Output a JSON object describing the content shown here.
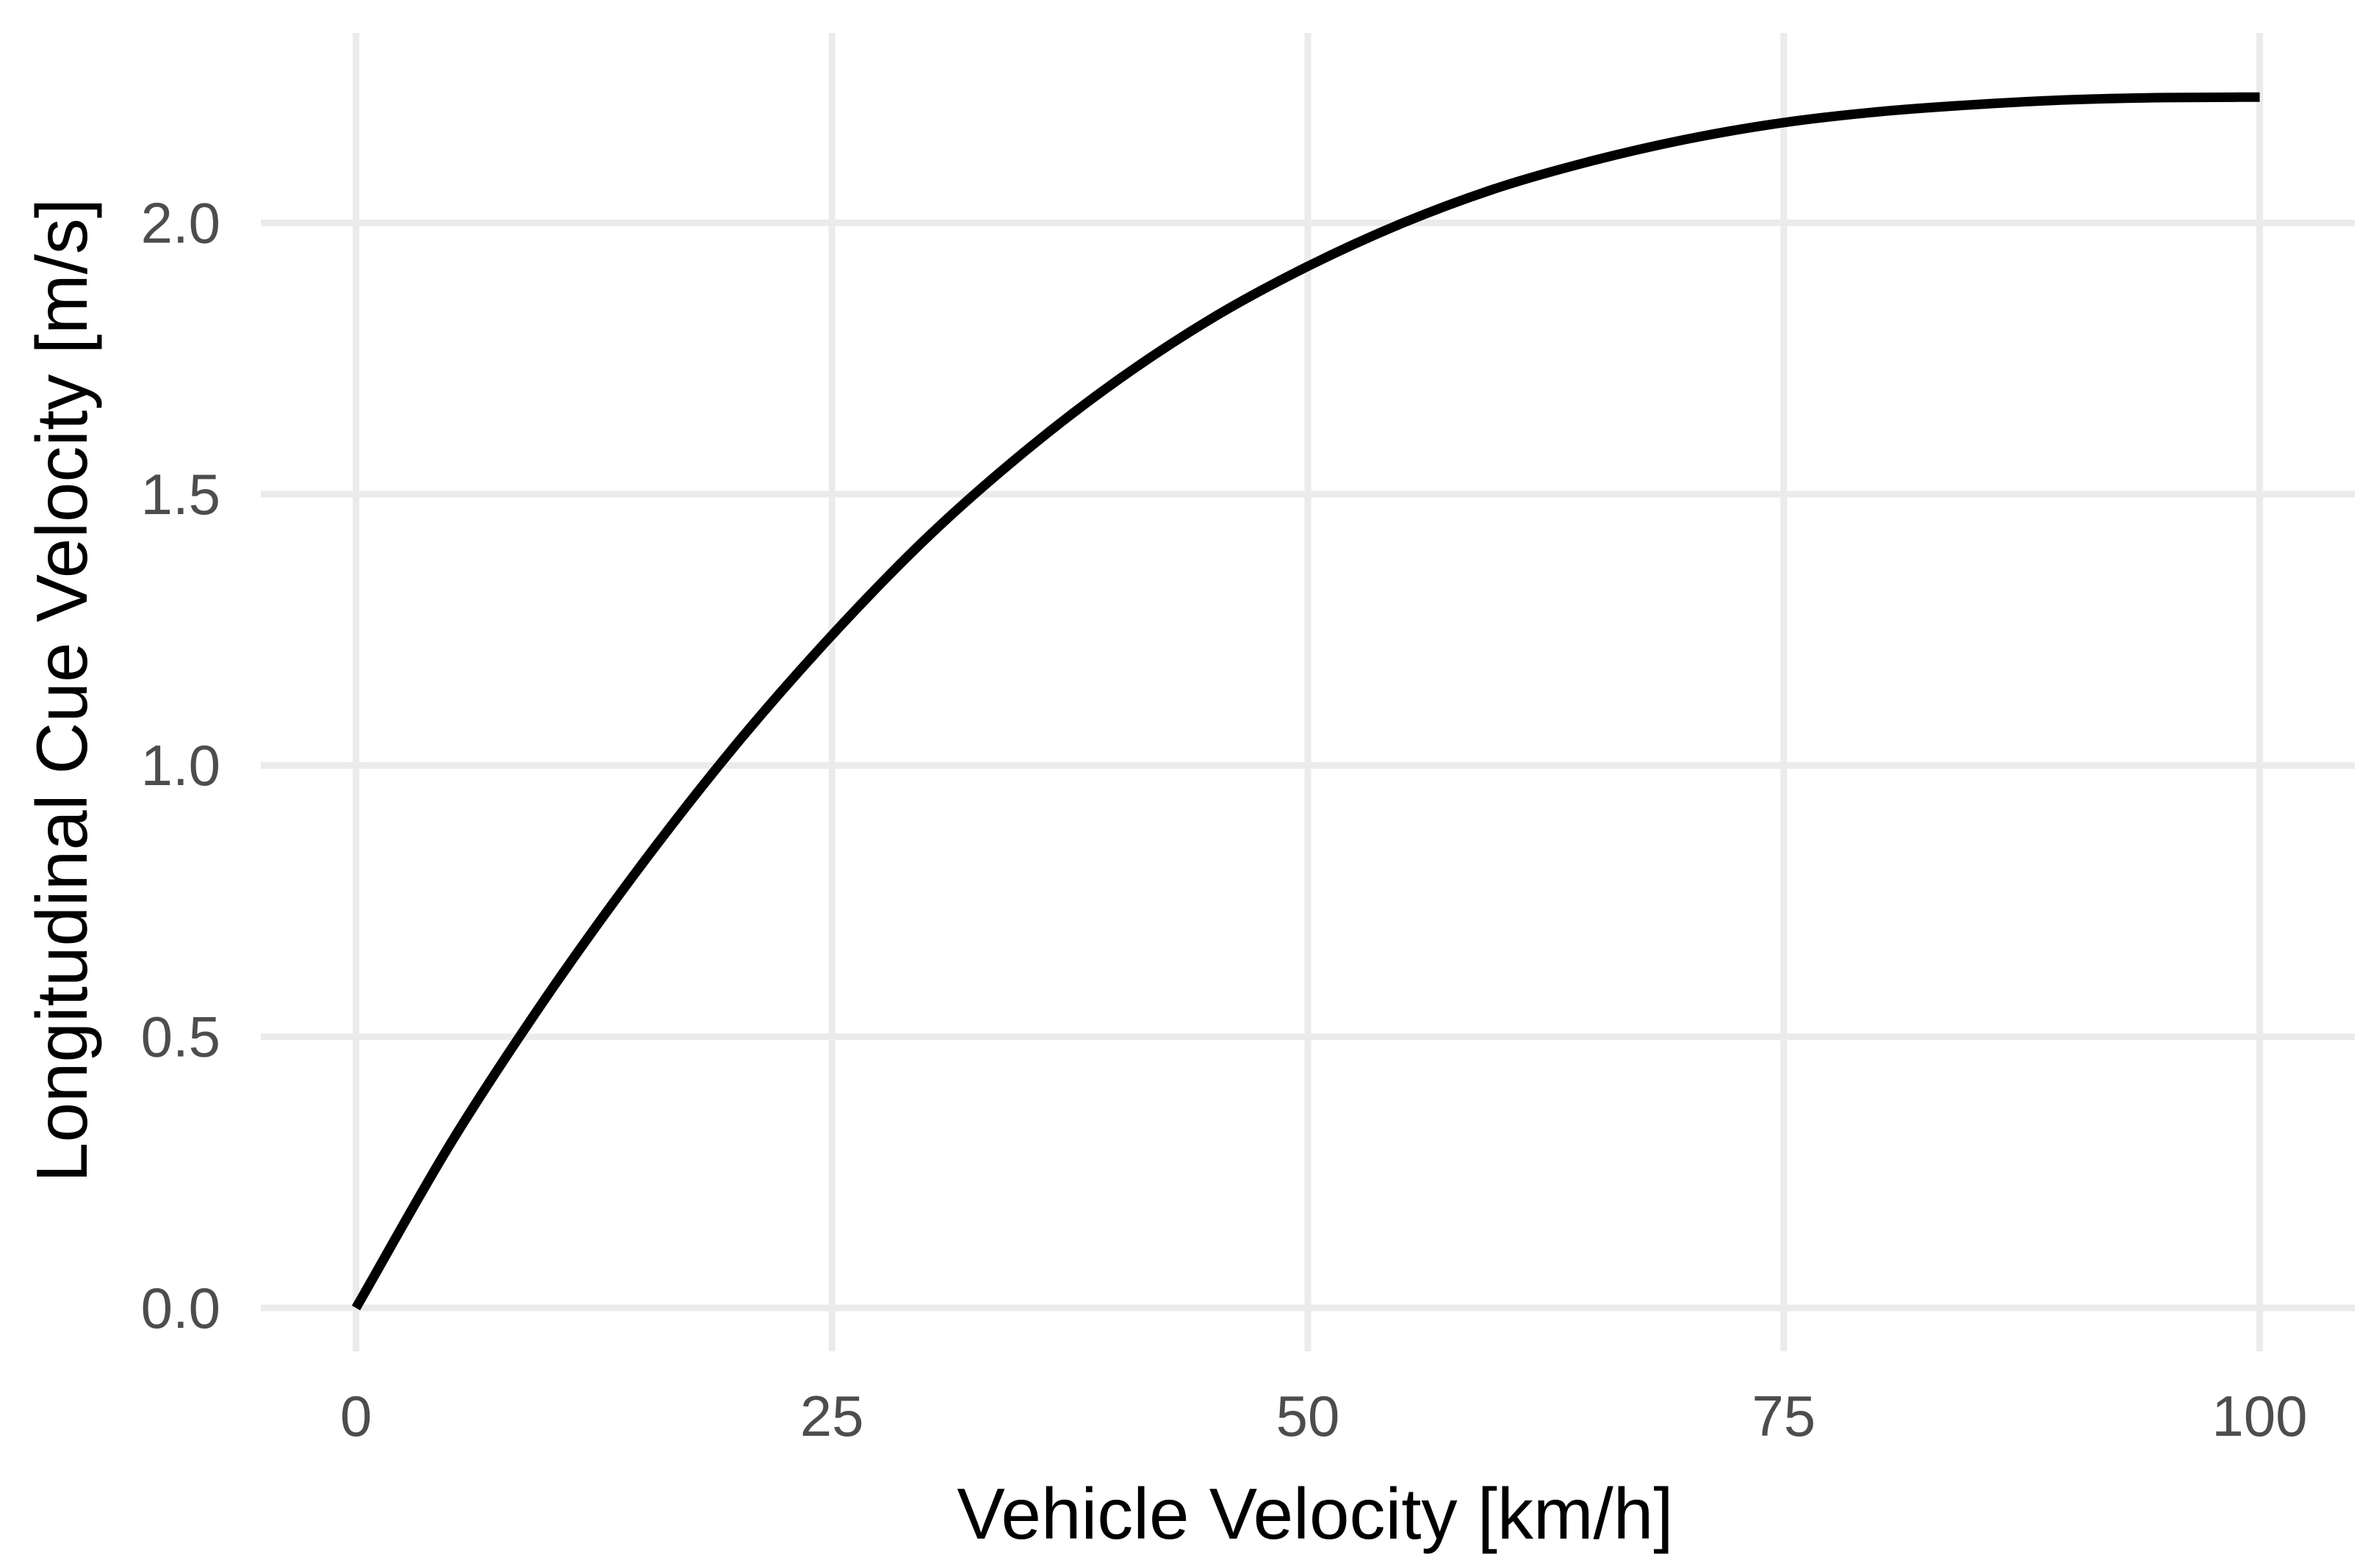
{
  "chart_data": {
    "type": "line",
    "title": "",
    "xlabel": "Vehicle Velocity [km/h]",
    "ylabel": "Longitudinal Cue Velocity [m/s]",
    "xlim": [
      -5,
      105
    ],
    "ylim": [
      -0.08,
      2.35
    ],
    "x_ticks": [
      0,
      25,
      50,
      75,
      100
    ],
    "x_tick_labels": [
      "0",
      "25",
      "50",
      "75",
      "100"
    ],
    "y_ticks": [
      0.0,
      0.5,
      1.0,
      1.5,
      2.0
    ],
    "y_tick_labels": [
      "0.0",
      "0.5",
      "1.0",
      "1.5",
      "2.0"
    ],
    "grid": true,
    "legend": "none",
    "line_color": "#000000",
    "grid_color": "#ebebeb",
    "series": [
      {
        "x": [
          0,
          5,
          10,
          15,
          20,
          25,
          30,
          35,
          40,
          45,
          50,
          55,
          60,
          65,
          70,
          75,
          80,
          85,
          90,
          95,
          100
        ],
        "y": [
          0.0,
          0.305,
          0.573,
          0.817,
          1.04,
          1.24,
          1.42,
          1.575,
          1.71,
          1.825,
          1.92,
          2.0,
          2.065,
          2.115,
          2.155,
          2.185,
          2.205,
          2.218,
          2.227,
          2.231,
          2.232
        ]
      }
    ]
  }
}
